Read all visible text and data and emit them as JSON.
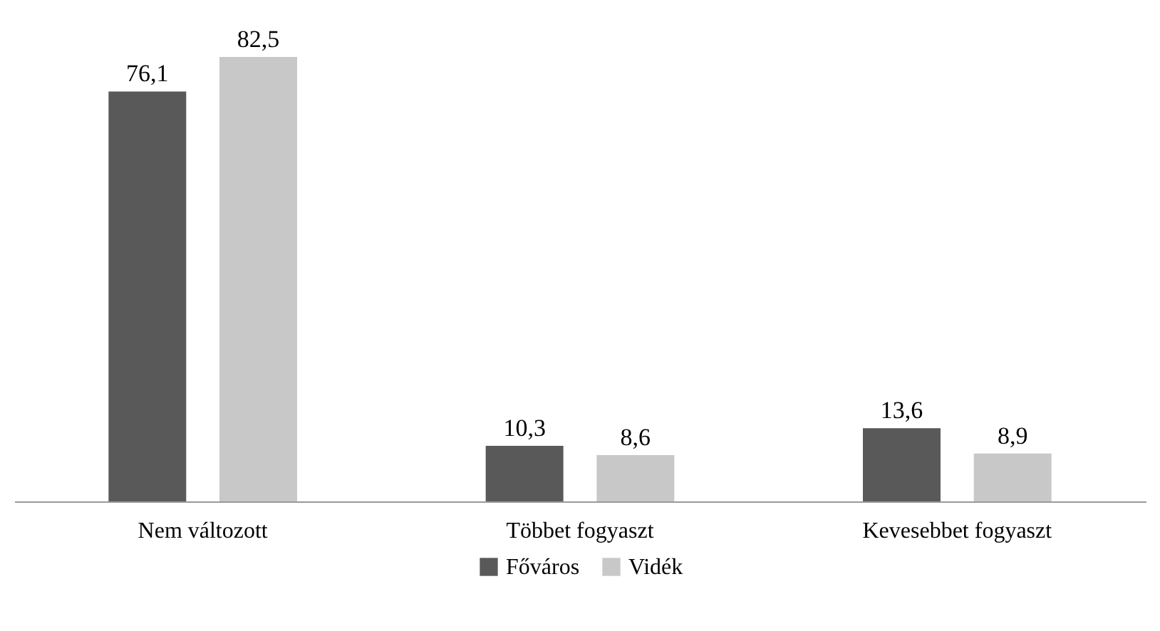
{
  "chart_data": {
    "type": "bar",
    "categories": [
      "Nem változott",
      "Többet fogyaszt",
      "Kevesebbet fogyaszt"
    ],
    "series": [
      {
        "name": "Főváros",
        "color": "#595959",
        "values": [
          76.1,
          10.3,
          13.6
        ],
        "value_labels": [
          "76,1",
          "10,3",
          "13,6"
        ]
      },
      {
        "name": "Vidék",
        "color": "#c8c8c8",
        "values": [
          82.5,
          8.6,
          8.9
        ],
        "value_labels": [
          "82,5",
          "8,6",
          "8,9"
        ]
      }
    ],
    "legend": "bottom",
    "grid": false
  }
}
